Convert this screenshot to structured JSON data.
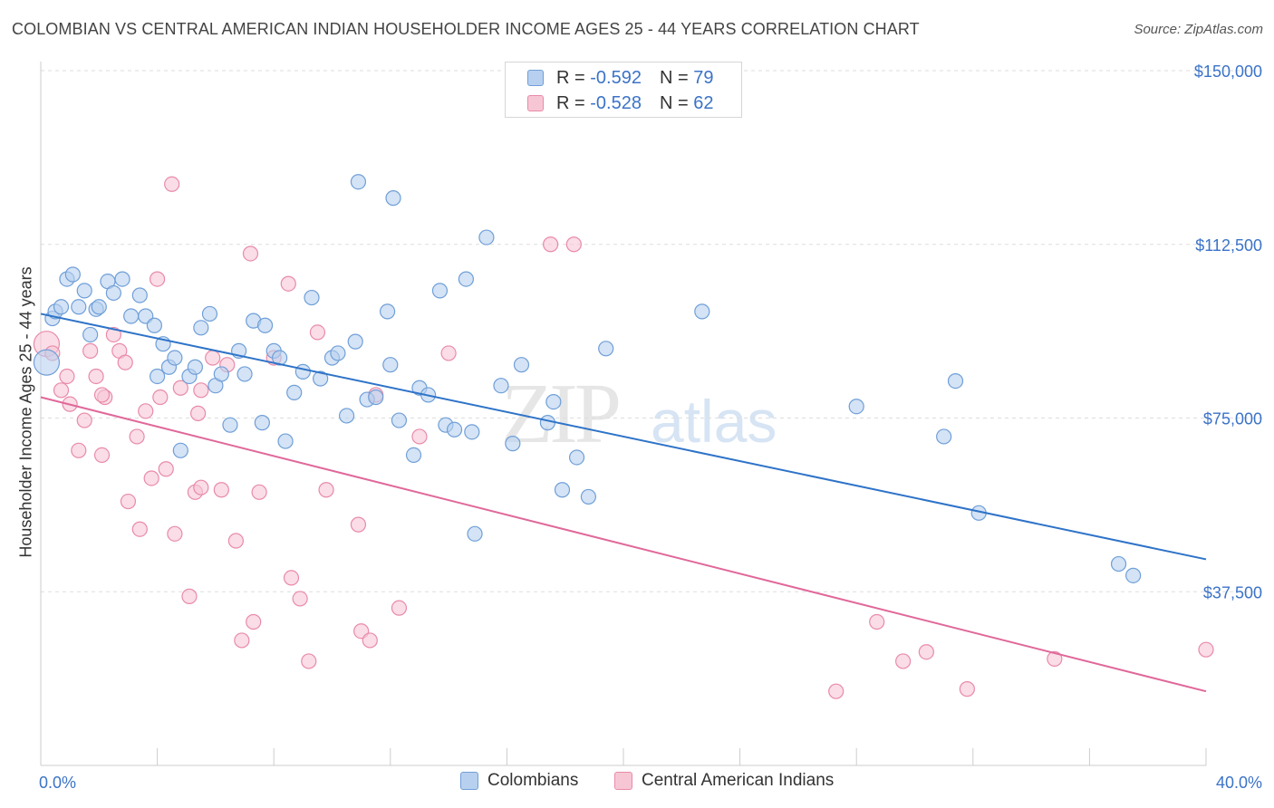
{
  "title": "COLOMBIAN VS CENTRAL AMERICAN INDIAN HOUSEHOLDER INCOME AGES 25 - 44 YEARS CORRELATION CHART",
  "source": "Source: ZipAtlas.com",
  "watermark": {
    "zip": "ZIP",
    "atlas": "atlas"
  },
  "legend_top": {
    "rows": [
      {
        "r_label": "R =",
        "r_value": "-0.592",
        "n_label": "N =",
        "n_value": "79"
      },
      {
        "r_label": "R =",
        "r_value": "-0.528",
        "n_label": "N =",
        "n_value": "62"
      }
    ]
  },
  "legend_bottom": {
    "items": [
      "Colombians",
      "Central American Indians"
    ]
  },
  "colors": {
    "blue_fill": "#b8d0ef",
    "blue_stroke": "#6f9fd8",
    "blue_line": "#2e73c8",
    "pink_fill": "#f7c6d5",
    "pink_stroke": "#e98aa9",
    "pink_line": "#e0689a",
    "axis_label": "#3b73c8",
    "grid": "#dddddd"
  },
  "chart_data": {
    "type": "scatter",
    "title": "COLOMBIAN VS CENTRAL AMERICAN INDIAN HOUSEHOLDER INCOME AGES 25 - 44 YEARS CORRELATION CHART",
    "xlabel": "",
    "ylabel": "Householder Income Ages 25 - 44 years",
    "xlim": [
      0,
      40
    ],
    "ylim": [
      0,
      160000
    ],
    "x_tick_labels": [
      "0.0%",
      "40.0%"
    ],
    "y_ticks": [
      37500,
      75000,
      112500,
      150000
    ],
    "y_tick_labels": [
      "$37,500",
      "$75,000",
      "$112,500",
      "$150,000"
    ],
    "grid": true,
    "legend_position": "top-center",
    "series": [
      {
        "name": "Colombians",
        "r": -0.592,
        "n": 79,
        "trend": {
          "x": [
            0,
            40
          ],
          "y": [
            97500,
            44500
          ]
        },
        "points": [
          [
            0.2,
            87000
          ],
          [
            0.4,
            96500
          ],
          [
            0.5,
            98000
          ],
          [
            0.7,
            99000
          ],
          [
            0.9,
            105000
          ],
          [
            1.1,
            106000
          ],
          [
            1.3,
            99000
          ],
          [
            1.5,
            102500
          ],
          [
            1.7,
            93000
          ],
          [
            1.9,
            98500
          ],
          [
            2.0,
            99000
          ],
          [
            2.3,
            104500
          ],
          [
            2.5,
            102000
          ],
          [
            2.8,
            105000
          ],
          [
            3.1,
            97000
          ],
          [
            3.4,
            101500
          ],
          [
            3.6,
            97000
          ],
          [
            3.9,
            95000
          ],
          [
            4.0,
            84000
          ],
          [
            4.2,
            91000
          ],
          [
            4.4,
            86000
          ],
          [
            4.6,
            88000
          ],
          [
            4.8,
            68000
          ],
          [
            5.1,
            84000
          ],
          [
            5.3,
            86000
          ],
          [
            5.5,
            94500
          ],
          [
            5.8,
            97500
          ],
          [
            6.0,
            82000
          ],
          [
            6.2,
            84500
          ],
          [
            6.5,
            73500
          ],
          [
            6.8,
            89500
          ],
          [
            7.0,
            84500
          ],
          [
            7.3,
            96000
          ],
          [
            7.6,
            74000
          ],
          [
            7.7,
            95000
          ],
          [
            8.0,
            89500
          ],
          [
            8.2,
            88000
          ],
          [
            8.4,
            70000
          ],
          [
            8.7,
            80500
          ],
          [
            9.0,
            85000
          ],
          [
            9.3,
            101000
          ],
          [
            9.6,
            83500
          ],
          [
            10.0,
            88000
          ],
          [
            10.2,
            89000
          ],
          [
            10.5,
            75500
          ],
          [
            10.8,
            91500
          ],
          [
            10.9,
            126000
          ],
          [
            11.2,
            79000
          ],
          [
            11.5,
            79500
          ],
          [
            11.9,
            98000
          ],
          [
            12.0,
            86500
          ],
          [
            12.3,
            74500
          ],
          [
            12.8,
            67000
          ],
          [
            13.0,
            81500
          ],
          [
            13.3,
            80000
          ],
          [
            13.7,
            102500
          ],
          [
            13.9,
            73500
          ],
          [
            14.2,
            72500
          ],
          [
            14.6,
            105000
          ],
          [
            14.8,
            72000
          ],
          [
            14.9,
            50000
          ],
          [
            15.3,
            114000
          ],
          [
            15.8,
            82000
          ],
          [
            16.2,
            69500
          ],
          [
            16.5,
            86500
          ],
          [
            17.4,
            74000
          ],
          [
            17.6,
            78500
          ],
          [
            18.4,
            66500
          ],
          [
            17.9,
            59500
          ],
          [
            12.1,
            122500
          ],
          [
            18.8,
            58000
          ],
          [
            19.4,
            90000
          ],
          [
            22.7,
            98000
          ],
          [
            28.0,
            77500
          ],
          [
            31.0,
            71000
          ],
          [
            32.2,
            54500
          ],
          [
            37.0,
            43500
          ],
          [
            37.5,
            41000
          ],
          [
            31.4,
            83000
          ]
        ]
      },
      {
        "name": "Central American Indians",
        "r": -0.528,
        "n": 62,
        "trend": {
          "x": [
            0,
            40
          ],
          "y": [
            79500,
            16000
          ]
        },
        "points": [
          [
            0.2,
            91000
          ],
          [
            0.4,
            89000
          ],
          [
            0.7,
            81000
          ],
          [
            0.9,
            84000
          ],
          [
            1.0,
            78000
          ],
          [
            1.3,
            68000
          ],
          [
            1.5,
            74500
          ],
          [
            1.7,
            89500
          ],
          [
            1.9,
            84000
          ],
          [
            2.1,
            67000
          ],
          [
            2.2,
            79500
          ],
          [
            2.5,
            93000
          ],
          [
            2.7,
            89500
          ],
          [
            2.9,
            87000
          ],
          [
            3.0,
            57000
          ],
          [
            3.3,
            71000
          ],
          [
            3.4,
            51000
          ],
          [
            3.6,
            76500
          ],
          [
            3.8,
            62000
          ],
          [
            4.0,
            105000
          ],
          [
            4.1,
            79500
          ],
          [
            4.3,
            64000
          ],
          [
            4.5,
            125500
          ],
          [
            4.6,
            50000
          ],
          [
            4.8,
            81500
          ],
          [
            5.1,
            36500
          ],
          [
            5.3,
            59000
          ],
          [
            5.4,
            76000
          ],
          [
            5.5,
            60000
          ],
          [
            5.9,
            88000
          ],
          [
            6.2,
            59500
          ],
          [
            6.4,
            86500
          ],
          [
            6.7,
            48500
          ],
          [
            6.9,
            27000
          ],
          [
            7.2,
            110500
          ],
          [
            7.3,
            31000
          ],
          [
            7.5,
            59000
          ],
          [
            8.0,
            88000
          ],
          [
            8.5,
            104000
          ],
          [
            8.6,
            40500
          ],
          [
            8.9,
            36000
          ],
          [
            9.2,
            22500
          ],
          [
            9.5,
            93500
          ],
          [
            9.8,
            59500
          ],
          [
            11.0,
            29000
          ],
          [
            11.3,
            27000
          ],
          [
            11.5,
            80000
          ],
          [
            12.3,
            34000
          ],
          [
            13.0,
            71000
          ],
          [
            14.0,
            89000
          ],
          [
            17.5,
            112500
          ],
          [
            18.3,
            112500
          ],
          [
            27.3,
            16000
          ],
          [
            28.7,
            31000
          ],
          [
            29.6,
            22500
          ],
          [
            30.4,
            24500
          ],
          [
            31.8,
            16500
          ],
          [
            34.8,
            23000
          ],
          [
            40.0,
            25000
          ],
          [
            5.5,
            81000
          ],
          [
            10.9,
            52000
          ],
          [
            2.1,
            80000
          ]
        ]
      }
    ]
  }
}
